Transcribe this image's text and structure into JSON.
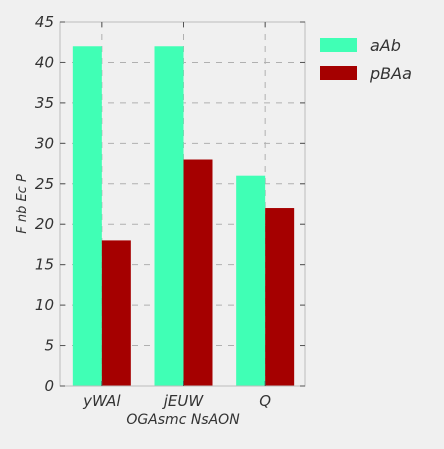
{
  "chart_data": {
    "type": "bar",
    "title": "",
    "xlabel": "OGAsmc  NsAON",
    "ylabel": "F nb Ec P",
    "categories": [
      "yWAl",
      "jEUW",
      "Q"
    ],
    "series": [
      {
        "name": "aAb",
        "values": [
          42,
          42,
          26
        ],
        "color": "#40ffb5"
      },
      {
        "name": "pBAa",
        "values": [
          18,
          28,
          22
        ],
        "color": "#a50000"
      }
    ],
    "ylim": [
      0,
      45
    ],
    "yticks": [
      0,
      5,
      10,
      15,
      20,
      25,
      30,
      35,
      40,
      45
    ],
    "grid": true,
    "legend_position": "top-right, outside"
  }
}
